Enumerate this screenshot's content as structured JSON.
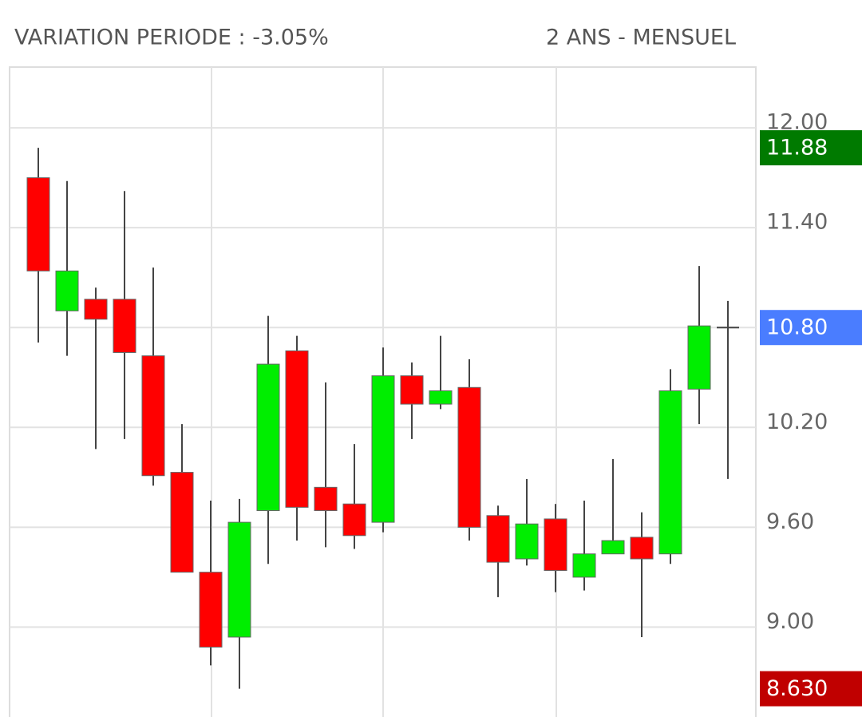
{
  "chart_data": {
    "type": "candlestick",
    "title": "VARIATION PERIODE : -3.05%",
    "subtitle": "2 ANS - MENSUEL",
    "categories": [
      null,
      null,
      null,
      null,
      null,
      null,
      null,
      null,
      null,
      null,
      null,
      null,
      null,
      null,
      null,
      null,
      null,
      null,
      null,
      null,
      null,
      null,
      null,
      null,
      null
    ],
    "series": [
      {
        "open": [
          11.7,
          10.9,
          10.97,
          10.97,
          10.63,
          9.93,
          9.33,
          8.94,
          9.7,
          10.66,
          9.84,
          9.74,
          9.63,
          10.51,
          10.34,
          10.44,
          9.67,
          9.41,
          9.65,
          9.3,
          9.44,
          9.54,
          9.44,
          10.43,
          10.8
        ],
        "high": [
          11.88,
          11.68,
          11.04,
          11.62,
          11.16,
          10.22,
          9.76,
          9.77,
          10.87,
          10.75,
          10.47,
          10.1,
          10.68,
          10.59,
          10.75,
          10.61,
          9.73,
          9.89,
          9.74,
          9.76,
          10.01,
          9.69,
          10.55,
          11.17,
          10.96
        ],
        "low": [
          10.71,
          10.63,
          10.07,
          10.13,
          9.85,
          9.33,
          8.77,
          8.63,
          9.38,
          9.52,
          9.48,
          9.47,
          9.57,
          10.13,
          10.31,
          9.52,
          9.18,
          9.37,
          9.21,
          9.22,
          9.44,
          8.94,
          9.38,
          10.22,
          9.89
        ],
        "close": [
          11.14,
          11.14,
          10.85,
          10.65,
          9.91,
          9.33,
          8.88,
          9.63,
          10.58,
          9.72,
          9.7,
          9.55,
          10.51,
          10.34,
          10.42,
          9.6,
          9.39,
          9.62,
          9.34,
          9.44,
          9.52,
          9.41,
          10.42,
          10.81,
          10.8
        ],
        "up_color": "#00ee00",
        "down_color": "#ff0000"
      }
    ],
    "ylim": [
      8.46,
      12.365
    ],
    "yticks": [
      {
        "value": 12,
        "label": "12.00"
      },
      {
        "value": 11.4,
        "label": "11.40"
      },
      {
        "value": 10.8,
        "label": "10.80"
      },
      {
        "value": 10.2,
        "label": "10.20"
      },
      {
        "value": 9.6,
        "label": "9.60"
      },
      {
        "value": 9,
        "label": "9.00"
      }
    ],
    "price_labels": [
      {
        "value": 11.88,
        "label": "11.88",
        "color": "#007a00"
      },
      {
        "value": 10.8,
        "label": "10.80",
        "color": "#4a7dff"
      },
      {
        "value": 8.63,
        "label": "8.630",
        "color": "#c00000"
      }
    ],
    "grid": true
  }
}
